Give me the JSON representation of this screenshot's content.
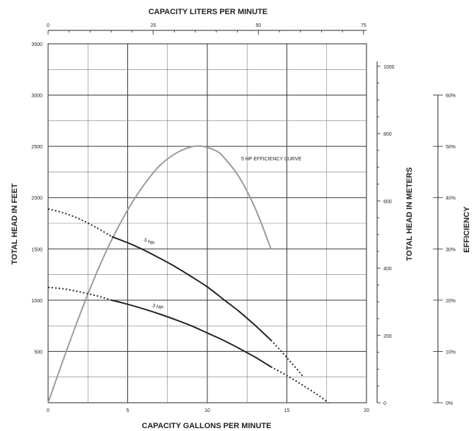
{
  "chart_data": {
    "type": "line",
    "title": "CAPACITY LITERS PER MINUTE",
    "xlabel": "CAPACITY GALLONS PER MINUTE",
    "ylabel": "TOTAL HEAD IN FEET",
    "xlim": [
      0,
      20
    ],
    "ylim": [
      0,
      3500
    ],
    "x_ticks": [
      "0",
      "5",
      "10",
      "15",
      "20"
    ],
    "y_ticks": [
      "500",
      "1000",
      "1500",
      "2000",
      "2500",
      "3000",
      "3500"
    ],
    "top_axis": {
      "label": "CAPACITY LITERS PER MINUTE",
      "range": [
        0,
        75
      ],
      "ticks": [
        "0",
        "25",
        "50",
        "75"
      ]
    },
    "right_axis_meters": {
      "label": "TOTAL HEAD IN METERS",
      "range": [
        0,
        1067
      ],
      "ticks": [
        "0",
        "200",
        "400",
        "600",
        "800",
        "1000"
      ]
    },
    "right_axis_efficiency": {
      "label": "EFFICIENCY",
      "range": [
        0,
        60
      ],
      "ticks": [
        "0%",
        "10%",
        "20%",
        "30%",
        "40%",
        "50%",
        "60%"
      ]
    },
    "grid": true,
    "series": [
      {
        "name": "5 HP",
        "label": "5 HP",
        "solid": {
          "x": [
            4,
            5,
            6,
            7,
            8,
            9,
            10,
            11,
            12,
            13,
            14
          ],
          "y": [
            1620,
            1560,
            1490,
            1410,
            1325,
            1230,
            1130,
            1010,
            890,
            755,
            610
          ]
        },
        "dotted_before": {
          "x": [
            0,
            1,
            2,
            3,
            4
          ],
          "y": [
            1890,
            1850,
            1790,
            1710,
            1620
          ]
        },
        "dotted_after": {
          "x": [
            14,
            15,
            16
          ],
          "y": [
            610,
            440,
            260
          ]
        }
      },
      {
        "name": "3 HP",
        "label": "3 HP",
        "solid": {
          "x": [
            4,
            5,
            6,
            7,
            8,
            9,
            10,
            11,
            12,
            13,
            14
          ],
          "y": [
            1000,
            960,
            915,
            865,
            810,
            750,
            680,
            610,
            530,
            445,
            350
          ]
        },
        "dotted_before": {
          "x": [
            0,
            1,
            2,
            3,
            4
          ],
          "y": [
            1125,
            1110,
            1080,
            1045,
            1000
          ]
        },
        "dotted_after": {
          "x": [
            14,
            15,
            16,
            17,
            17.6
          ],
          "y": [
            350,
            265,
            170,
            70,
            0
          ]
        }
      },
      {
        "name": "5 HP EFFICIENCY CURVE",
        "label": "5 HP EFFICIENCY CURVE",
        "x": [
          0,
          1,
          2,
          3,
          4,
          5,
          6,
          7,
          8,
          9,
          9.7,
          10.5,
          11,
          12,
          13,
          14
        ],
        "y": [
          0,
          440,
          860,
          1250,
          1590,
          1880,
          2120,
          2310,
          2430,
          2495,
          2500,
          2460,
          2400,
          2200,
          1900,
          1500
        ]
      }
    ]
  }
}
